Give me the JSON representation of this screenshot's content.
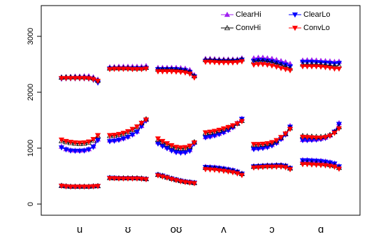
{
  "chart_data": {
    "type": "line",
    "panels": [
      "u",
      "ʊ",
      "oʊ",
      "ʌ",
      "ɔ",
      "ɑ"
    ],
    "x": [
      1,
      2,
      3,
      4,
      5,
      6,
      7,
      8,
      9
    ],
    "ylim": [
      -200,
      3550
    ],
    "yticks": [
      0,
      1000,
      2000,
      3000
    ],
    "title": "",
    "xlabel": "",
    "ylabel": "",
    "grid": false,
    "legend": {
      "position": "top-right"
    },
    "series": [
      {
        "name": "ClearHi",
        "color": "#a020f0",
        "marker": "triangle-up",
        "panels": [
          {
            "F1": [
              330,
              320,
              315,
              315,
              315,
              315,
              315,
              320,
              325
            ],
            "F2": [
              1030,
              985,
              965,
              960,
              960,
              965,
              985,
              1035,
              1160
            ],
            "F3": [
              2270,
              2275,
              2280,
              2285,
              2285,
              2290,
              2290,
              2270,
              2230
            ]
          },
          {
            "F1": [
              470,
              465,
              465,
              465,
              465,
              465,
              465,
              460,
              450
            ],
            "F2": [
              1140,
              1145,
              1160,
              1180,
              1210,
              1250,
              1300,
              1400,
              1510
            ],
            "F3": [
              2450,
              2455,
              2460,
              2460,
              2460,
              2460,
              2460,
              2460,
              2470
            ]
          },
          {
            "F1": [
              530,
              510,
              485,
              460,
              440,
              420,
              405,
              395,
              385
            ],
            "F2": [
              1110,
              1060,
              1015,
              975,
              945,
              935,
              940,
              970,
              1100
            ],
            "F3": [
              2440,
              2440,
              2440,
              2440,
              2440,
              2435,
              2425,
              2400,
              2310
            ]
          },
          {
            "F1": [
              670,
              665,
              660,
              650,
              640,
              625,
              610,
              585,
              550
            ],
            "F2": [
              1200,
              1215,
              1235,
              1260,
              1290,
              1330,
              1380,
              1450,
              1530
            ],
            "F3": [
              2600,
              2600,
              2595,
              2590,
              2590,
              2590,
              2590,
              2590,
              2610
            ]
          },
          {
            "F1": [
              680,
              685,
              690,
              695,
              695,
              700,
              700,
              690,
              650
            ],
            "F2": [
              1000,
              1005,
              1015,
              1030,
              1060,
              1100,
              1170,
              1250,
              1400
            ],
            "F3": [
              2610,
              2620,
              2620,
              2610,
              2600,
              2580,
              2560,
              2540,
              2510
            ]
          },
          {
            "F1": [
              790,
              790,
              785,
              780,
              775,
              765,
              750,
              730,
              680
            ],
            "F2": [
              1150,
              1150,
              1155,
              1160,
              1170,
              1190,
              1230,
              1300,
              1450
            ],
            "F3": [
              2570,
              2575,
              2575,
              2570,
              2565,
              2560,
              2555,
              2545,
              2550
            ]
          }
        ]
      },
      {
        "name": "ClearLo",
        "color": "#0000ff",
        "marker": "triangle-down",
        "panels": [
          {
            "F1": [
              325,
              315,
              310,
              310,
              310,
              310,
              310,
              315,
              320
            ],
            "F2": [
              1010,
              975,
              955,
              950,
              950,
              955,
              975,
              1020,
              1140
            ],
            "F3": [
              2240,
              2245,
              2245,
              2245,
              2245,
              2245,
              2240,
              2220,
              2170
            ]
          },
          {
            "F1": [
              465,
              465,
              460,
              460,
              460,
              460,
              460,
              455,
              445
            ],
            "F2": [
              1120,
              1130,
              1145,
              1170,
              1200,
              1240,
              1290,
              1390,
              1490
            ],
            "F3": [
              2420,
              2420,
              2420,
              2420,
              2420,
              2420,
              2420,
              2420,
              2430
            ]
          },
          {
            "F1": [
              520,
              505,
              480,
              455,
              435,
              415,
              400,
              390,
              380
            ],
            "F2": [
              1080,
              1035,
              995,
              955,
              925,
              915,
              920,
              950,
              1080
            ],
            "F3": [
              2410,
              2410,
              2410,
              2410,
              2410,
              2400,
              2390,
              2360,
              2280
            ]
          },
          {
            "F1": [
              660,
              655,
              650,
              640,
              630,
              615,
              600,
              575,
              540
            ],
            "F2": [
              1190,
              1205,
              1225,
              1250,
              1280,
              1320,
              1370,
              1440,
              1520
            ],
            "F3": [
              2560,
              2560,
              2555,
              2555,
              2550,
              2550,
              2555,
              2560,
              2580
            ]
          },
          {
            "F1": [
              670,
              675,
              680,
              685,
              685,
              690,
              690,
              680,
              640
            ],
            "F2": [
              980,
              990,
              1000,
              1015,
              1045,
              1090,
              1160,
              1240,
              1380
            ],
            "F3": [
              2560,
              2570,
              2570,
              2560,
              2550,
              2530,
              2510,
              2490,
              2460
            ]
          },
          {
            "F1": [
              780,
              780,
              775,
              770,
              765,
              755,
              740,
              720,
              670
            ],
            "F2": [
              1140,
              1140,
              1145,
              1150,
              1160,
              1180,
              1220,
              1290,
              1430
            ],
            "F3": [
              2540,
              2540,
              2540,
              2535,
              2530,
              2525,
              2520,
              2510,
              2520
            ]
          }
        ]
      },
      {
        "name": "ConvHi",
        "color": "#000000",
        "marker": "triangle-up",
        "panels": [
          {
            "F1": [
              330,
              320,
              315,
              315,
              315,
              315,
              315,
              320,
              325
            ],
            "F2": [
              1130,
              1110,
              1095,
              1085,
              1080,
              1085,
              1100,
              1140,
              1220
            ],
            "F3": [
              2265,
              2270,
              2270,
              2270,
              2270,
              2270,
              2265,
              2250,
              2210
            ]
          },
          {
            "F1": [
              470,
              465,
              465,
              465,
              465,
              465,
              465,
              460,
              450
            ],
            "F2": [
              1220,
              1225,
              1240,
              1260,
              1290,
              1330,
              1380,
              1450,
              1520
            ],
            "F3": [
              2430,
              2435,
              2435,
              2435,
              2435,
              2430,
              2430,
              2430,
              2440
            ]
          },
          {
            "F1": [
              525,
              505,
              480,
              455,
              435,
              415,
              400,
              390,
              380
            ],
            "F2": [
              1150,
              1110,
              1070,
              1035,
              1005,
              995,
              1000,
              1030,
              1110
            ],
            "F3": [
              2410,
              2410,
              2410,
              2410,
              2405,
              2400,
              2390,
              2365,
              2290
            ]
          },
          {
            "F1": [
              650,
              645,
              640,
              630,
              620,
              605,
              590,
              570,
              540
            ],
            "F2": [
              1270,
              1280,
              1295,
              1315,
              1340,
              1370,
              1400,
              1440,
              1490
            ],
            "F3": [
              2580,
              2580,
              2575,
              2570,
              2570,
              2570,
              2570,
              2570,
              2590
            ]
          },
          {
            "F1": [
              670,
              675,
              680,
              685,
              685,
              690,
              690,
              680,
              640
            ],
            "F2": [
              1060,
              1060,
              1065,
              1075,
              1095,
              1130,
              1190,
              1260,
              1360
            ],
            "F3": [
              2550,
              2560,
              2560,
              2550,
              2535,
              2510,
              2490,
              2460,
              2430
            ]
          },
          {
            "F1": [
              740,
              740,
              735,
              730,
              725,
              715,
              700,
              685,
              650
            ],
            "F2": [
              1220,
              1215,
              1210,
              1205,
              1205,
              1215,
              1240,
              1290,
              1380
            ],
            "F3": [
              2500,
              2500,
              2500,
              2500,
              2495,
              2490,
              2480,
              2470,
              2480
            ]
          }
        ]
      },
      {
        "name": "ConvLo",
        "color": "#ff0000",
        "marker": "triangle-down",
        "panels": [
          {
            "F1": [
              325,
              315,
              310,
              310,
              310,
              310,
              310,
              315,
              320
            ],
            "F2": [
              1150,
              1125,
              1110,
              1100,
              1095,
              1100,
              1115,
              1160,
              1230
            ],
            "F3": [
              2250,
              2250,
              2250,
              2250,
              2250,
              2250,
              2245,
              2230,
              2200
            ]
          },
          {
            "F1": [
              460,
              460,
              455,
              455,
              455,
              455,
              455,
              450,
              440
            ],
            "F2": [
              1230,
              1235,
              1250,
              1270,
              1300,
              1340,
              1385,
              1450,
              1510
            ],
            "F3": [
              2410,
              2415,
              2415,
              2415,
              2415,
              2410,
              2410,
              2410,
              2420
            ]
          },
          {
            "F1": [
              510,
              490,
              470,
              445,
              425,
              405,
              390,
              380,
              370
            ],
            "F2": [
              1170,
              1125,
              1085,
              1050,
              1020,
              1010,
              1015,
              1040,
              1100
            ],
            "F3": [
              2370,
              2370,
              2370,
              2370,
              2365,
              2360,
              2350,
              2330,
              2260
            ]
          },
          {
            "F1": [
              620,
              615,
              610,
              600,
              590,
              580,
              565,
              545,
              515
            ],
            "F2": [
              1280,
              1290,
              1305,
              1325,
              1350,
              1375,
              1405,
              1440,
              1480
            ],
            "F3": [
              2540,
              2540,
              2535,
              2530,
              2530,
              2530,
              2530,
              2535,
              2550
            ]
          },
          {
            "F1": [
              650,
              655,
              660,
              665,
              665,
              665,
              665,
              655,
              620
            ],
            "F2": [
              1070,
              1070,
              1075,
              1085,
              1105,
              1140,
              1195,
              1260,
              1340
            ],
            "F3": [
              2490,
              2500,
              2500,
              2490,
              2475,
              2455,
              2430,
              2410,
              2390
            ]
          },
          {
            "F1": [
              710,
              710,
              705,
              700,
              695,
              690,
              680,
              665,
              630
            ],
            "F2": [
              1200,
              1195,
              1190,
              1185,
              1185,
              1195,
              1220,
              1270,
              1350
            ],
            "F3": [
              2460,
              2460,
              2460,
              2460,
              2455,
              2445,
              2435,
              2420,
              2420
            ]
          }
        ]
      }
    ]
  }
}
